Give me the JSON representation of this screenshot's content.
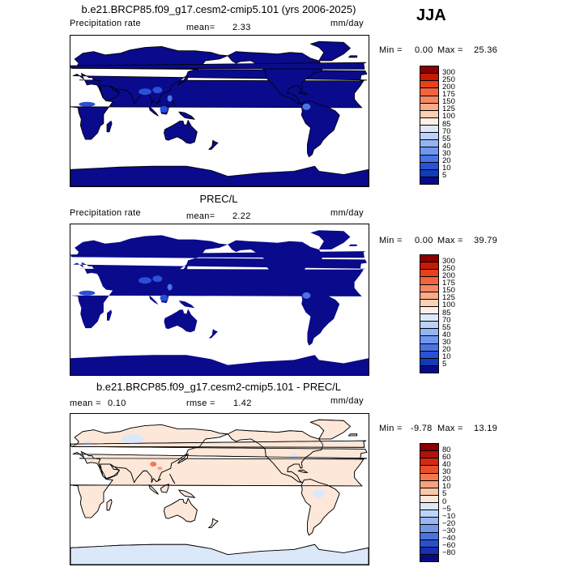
{
  "season": "JJA",
  "panels": [
    {
      "title": "b.e21.BRCP85.f09_g17.cesm2-cmip5.101 (yrs 2006-2025)",
      "left_label": "Precipitation rate",
      "stat1_label": "mean=",
      "stat1_value": "2.33",
      "stat2_label": "",
      "stat2_value": "",
      "units": "mm/day",
      "min_label": "Min =",
      "min_value": "0.00",
      "max_label": "Max =",
      "max_value": "25.36",
      "levels": [
        "300",
        "250",
        "200",
        "175",
        "150",
        "125",
        "100",
        "85",
        "70",
        "55",
        "40",
        "30",
        "20",
        "10",
        "5"
      ],
      "colors": [
        "#8b0000",
        "#c41a00",
        "#e8401a",
        "#f0653d",
        "#f7875f",
        "#fbab8a",
        "#fdd0b5",
        "#fdf0e6",
        "#dde9fb",
        "#bcd2fa",
        "#93b4f5",
        "#6f96f0",
        "#4a74e6",
        "#2a50d8",
        "#123bb8",
        "#0a0a8c"
      ],
      "map_style": "smooth"
    },
    {
      "title": "PREC/L",
      "left_label": "Precipitation rate",
      "stat1_label": "mean=",
      "stat1_value": "2.22",
      "stat2_label": "",
      "stat2_value": "",
      "units": "mm/day",
      "min_label": "Min =",
      "min_value": "0.00",
      "max_label": "Max =",
      "max_value": "39.79",
      "levels": [
        "300",
        "250",
        "200",
        "175",
        "150",
        "125",
        "100",
        "85",
        "70",
        "55",
        "40",
        "30",
        "20",
        "10",
        "5"
      ],
      "colors": [
        "#8b0000",
        "#c41a00",
        "#e8401a",
        "#f0653d",
        "#f7875f",
        "#fbab8a",
        "#fdd0b5",
        "#fdf0e6",
        "#dde9fb",
        "#bcd2fa",
        "#93b4f5",
        "#6f96f0",
        "#4a74e6",
        "#2a50d8",
        "#123bb8",
        "#0a0a8c"
      ],
      "map_style": "blocky"
    },
    {
      "title": "b.e21.BRCP85.f09_g17.cesm2-cmip5.101 - PREC/L",
      "left_label": "",
      "stat1_label": "mean =",
      "stat1_value": "0.10",
      "stat2_label": "rmse =",
      "stat2_value": "1.42",
      "units": "mm/day",
      "min_label": "Min =",
      "min_value": "-9.78",
      "max_label": "Max =",
      "max_value": "13.19",
      "levels": [
        "80",
        "60",
        "40",
        "30",
        "20",
        "10",
        "5",
        "0",
        "−5",
        "−10",
        "−20",
        "−30",
        "−40",
        "−60",
        "−80"
      ],
      "colors": [
        "#8b0000",
        "#b0130a",
        "#d32a14",
        "#e8502c",
        "#f2784f",
        "#f7a27c",
        "#fbc7a8",
        "#fde7d8",
        "#dbe8fa",
        "#bed3f7",
        "#99b6f2",
        "#7197ea",
        "#4a73de",
        "#2a4fcf",
        "#1530b0",
        "#0a0a80"
      ],
      "map_style": "diff"
    }
  ]
}
